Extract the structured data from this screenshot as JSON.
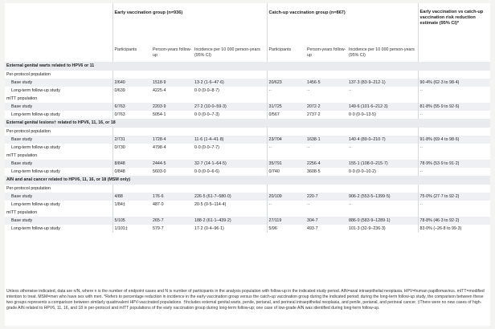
{
  "headers": {
    "early_group": "Early vaccination group (n=936)",
    "catchup_group": "Catch-up vaccination group (n=867)",
    "risk_reduction": "Early vaccination vs catch-up vaccination risk reduction estimate (95% CI)*",
    "participants": "Participants",
    "person_years": "Person-years follow-up",
    "incidence": "Incidence per 10 000 person-years (95% CI)"
  },
  "sections": [
    {
      "title": "External genital warts related to HPV6 or 11",
      "subgroups": [
        {
          "label": "Per-protocol population",
          "rows": [
            {
              "label": "Base study",
              "e_part": "2/640",
              "e_py": "1518·9",
              "e_inc": "13·2 (1·6–47·6)",
              "c_part": "20/623",
              "c_py": "1456·5",
              "c_inc": "137·3 (83·9–212·1)",
              "rr": "90·4% (62·3 to 98·4)"
            },
            {
              "label": "Long-term follow-up study",
              "e_part": "0/639",
              "e_py": "4225·4",
              "e_inc": "0·0 (0·0–8·7)",
              "c_part": "··",
              "c_py": "··",
              "c_inc": "··",
              "rr": "··"
            }
          ]
        },
        {
          "label": "mITT population",
          "rows": [
            {
              "label": "Base study",
              "e_part": "6/763",
              "e_py": "2203·9",
              "e_inc": "27·2 (10·0–59·3)",
              "c_part": "31/725",
              "c_py": "2072·2",
              "c_inc": "149·6 (101·6–212·3)",
              "rr": "81·8% (55·9 to 92·6)"
            },
            {
              "label": "Long-term follow-up study",
              "e_part": "0/763",
              "e_py": "5054·1",
              "e_inc": "0·0 (0·0–7·3)",
              "c_part": "0/567",
              "c_py": "2737·2",
              "c_inc": "0·0 (0·0–13·5)",
              "rr": "··"
            }
          ]
        }
      ]
    },
    {
      "title": "External genital lesions† related to HPV6, 11, 16, or 18",
      "subgroups": [
        {
          "label": "Per-protocol population",
          "rows": [
            {
              "label": "Base study",
              "e_part": "2/731",
              "e_py": "1728·4",
              "e_inc": "11·6 (1·4–41·8)",
              "c_part": "23/704",
              "c_py": "1638·1",
              "c_inc": "140·4 (89·0–210·7)",
              "rr": "91·8% (69·4 to 98·6)"
            },
            {
              "label": "Long-term follow-up study",
              "e_part": "0/730",
              "e_py": "4798·4",
              "e_inc": "0·0 (0·0–7·7)",
              "c_part": "··",
              "c_py": "··",
              "c_inc": "··",
              "rr": "··"
            }
          ]
        },
        {
          "label": "mITT population",
          "rows": [
            {
              "label": "Base study",
              "e_part": "8/848",
              "e_py": "2444·5",
              "e_inc": "32·7 (14·1–64·5)",
              "c_part": "35/791",
              "c_py": "2256·4",
              "c_inc": "155·1 (108·0–215·7)",
              "rr": "78·9% (53·9 to 91·2)"
            },
            {
              "label": "Long-term follow-up study",
              "e_part": "0/848",
              "e_py": "5603·0",
              "e_inc": "0·0 (0·0–6·6)",
              "c_part": "0/740",
              "c_py": "3608·5",
              "c_inc": "0·0 (0·0–10·2)",
              "rr": "··"
            }
          ]
        }
      ]
    },
    {
      "title": "AIN and anal cancer related to HPV6, 11, 16, or 18 (MSM only)",
      "subgroups": [
        {
          "label": "Per-protocol population",
          "rows": [
            {
              "label": "Base study",
              "e_part": "4/88",
              "e_py": "176·6",
              "e_inc": "226·5 (61·7–580·0)",
              "c_part": "20/109",
              "c_py": "220·7",
              "c_inc": "906·2 (553·5–1399·5)",
              "rr": "75·0% (27·7 to 92·2)"
            },
            {
              "label": "Long-term follow-up study",
              "e_part": "1/84‡",
              "e_py": "487·0",
              "e_inc": "20·5 (0·5–114·4)",
              "c_part": "··",
              "c_py": "··",
              "c_inc": "··",
              "rr": "··"
            }
          ]
        },
        {
          "label": "mITT population",
          "rows": [
            {
              "label": "Base study",
              "e_part": "5/105",
              "e_py": "265·7",
              "e_inc": "188·2 (61·1–439·2)",
              "c_part": "27/119",
              "c_py": "304·7",
              "c_inc": "886·0 (583·9–1289·1)",
              "rr": "78·8% (46·3 to 92·2)"
            },
            {
              "label": "Long-term follow-up study",
              "e_part": "1/101‡",
              "e_py": "579·7",
              "e_inc": "17·2 (0·4–96·1)",
              "c_part": "5/96",
              "c_py": "493·7",
              "c_inc": "101·3 (32·9–236·3)",
              "rr": "83·0% (–26·8 to 99·3)"
            }
          ]
        }
      ]
    }
  ],
  "footnotes": [
    "Unless otherwise indicated, data are n/N, where n is the number of endpoint cases and N is number of participants in the analysis population with follow-up in the indicated study period. AIN=anal intraepithelial neoplasia. HPV=human papillomavirus. mITT=modified intention to treat. MSM=men who have sex with men. *Refers to percentage reduction in incidence in the early vaccination group versus the catch-up vaccination group during the indicated period; during the long-term follow-up study, the comparison between these two groups represents a comparison between similarly quadrivalent HPV-vaccinated populations. †Includes external genital warts, penile, perianal, and perineal intraepithelial neoplasia, and penile, perianal, and perineal cancer. ‡There were no new cases of high-grade AIN related to HPV6, 11, 16, and 18 in per-protocol and mITT populations of the early vaccination group during long-term follow-up; one case of low-grade AIN was identified during long-term follow-up."
  ]
}
